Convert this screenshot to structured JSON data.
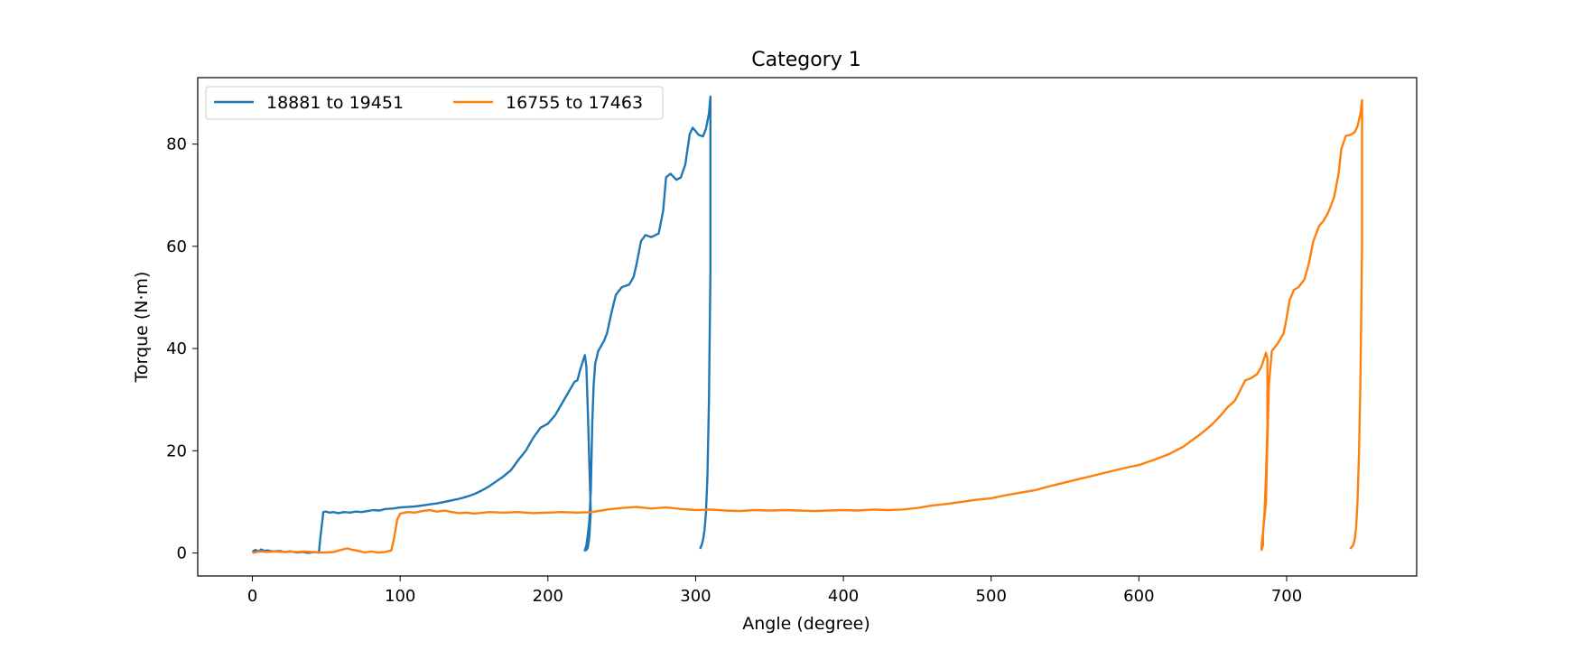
{
  "chart_data": {
    "type": "line",
    "title": "Category 1",
    "xlabel": "Angle (degree)",
    "ylabel": "Torque (N·m)",
    "xlim": [
      -37,
      788
    ],
    "ylim": [
      -4.5,
      93
    ],
    "xticks": [
      0,
      100,
      200,
      300,
      400,
      500,
      600,
      700
    ],
    "yticks": [
      0,
      20,
      40,
      60,
      80
    ],
    "grid": false,
    "legend": {
      "placement": "top-left",
      "ncol": 2
    },
    "series": [
      {
        "name": "18881 to 19451",
        "color": "#1f77b4",
        "points": [
          [
            0,
            0.2
          ],
          [
            2,
            0.6
          ],
          [
            4,
            0.3
          ],
          [
            6,
            0.7
          ],
          [
            8,
            0.4
          ],
          [
            10,
            0.5
          ],
          [
            14,
            0.3
          ],
          [
            18,
            0.4
          ],
          [
            22,
            0.2
          ],
          [
            26,
            0.3
          ],
          [
            30,
            0.1
          ],
          [
            34,
            0.2
          ],
          [
            38,
            0.0
          ],
          [
            42,
            0.2
          ],
          [
            45,
            0.1
          ],
          [
            46,
            3.0
          ],
          [
            47,
            5.5
          ],
          [
            48,
            8.0
          ],
          [
            50,
            8.1
          ],
          [
            52,
            7.9
          ],
          [
            55,
            8.0
          ],
          [
            58,
            7.8
          ],
          [
            62,
            8.0
          ],
          [
            66,
            7.9
          ],
          [
            70,
            8.1
          ],
          [
            74,
            8.0
          ],
          [
            78,
            8.2
          ],
          [
            82,
            8.4
          ],
          [
            86,
            8.3
          ],
          [
            90,
            8.6
          ],
          [
            95,
            8.7
          ],
          [
            100,
            8.9
          ],
          [
            105,
            9.0
          ],
          [
            110,
            9.1
          ],
          [
            115,
            9.3
          ],
          [
            120,
            9.5
          ],
          [
            125,
            9.7
          ],
          [
            130,
            10.0
          ],
          [
            135,
            10.3
          ],
          [
            140,
            10.6
          ],
          [
            145,
            11.0
          ],
          [
            150,
            11.5
          ],
          [
            155,
            12.2
          ],
          [
            160,
            13.0
          ],
          [
            165,
            14.0
          ],
          [
            170,
            15.0
          ],
          [
            175,
            16.2
          ],
          [
            180,
            18.2
          ],
          [
            185,
            20.0
          ],
          [
            190,
            22.5
          ],
          [
            195,
            24.5
          ],
          [
            200,
            25.3
          ],
          [
            205,
            27.0
          ],
          [
            210,
            29.5
          ],
          [
            215,
            32.0
          ],
          [
            218,
            33.5
          ],
          [
            220,
            33.8
          ],
          [
            222,
            36.0
          ],
          [
            225,
            38.7
          ],
          [
            226,
            36.5
          ],
          [
            227,
            28.0
          ],
          [
            228,
            18.0
          ],
          [
            229,
            8.0
          ],
          [
            228,
            3.0
          ],
          [
            227,
            1.0
          ],
          [
            226,
            0.6
          ],
          [
            225,
            0.5
          ],
          [
            226,
            1.5
          ],
          [
            227,
            3.5
          ],
          [
            228,
            6.0
          ],
          [
            229,
            12.0
          ],
          [
            230,
            25.0
          ],
          [
            231,
            33.0
          ],
          [
            232,
            37.0
          ],
          [
            234,
            39.5
          ],
          [
            238,
            41.5
          ],
          [
            240,
            43.0
          ],
          [
            243,
            47.0
          ],
          [
            246,
            50.5
          ],
          [
            250,
            52.0
          ],
          [
            255,
            52.5
          ],
          [
            258,
            54.0
          ],
          [
            260,
            56.5
          ],
          [
            263,
            61.0
          ],
          [
            266,
            62.2
          ],
          [
            270,
            61.8
          ],
          [
            275,
            62.5
          ],
          [
            278,
            67.0
          ],
          [
            280,
            73.5
          ],
          [
            283,
            74.2
          ],
          [
            287,
            73.0
          ],
          [
            290,
            73.5
          ],
          [
            293,
            76.0
          ],
          [
            296,
            82.0
          ],
          [
            298,
            83.2
          ],
          [
            300,
            82.5
          ],
          [
            302,
            81.8
          ],
          [
            305,
            81.5
          ],
          [
            307,
            83.0
          ],
          [
            309,
            86.0
          ],
          [
            310,
            89.3
          ],
          [
            310,
            55.0
          ],
          [
            309,
            30.0
          ],
          [
            308,
            15.0
          ],
          [
            307,
            8.0
          ],
          [
            306,
            4.5
          ],
          [
            305,
            2.5
          ],
          [
            304,
            1.5
          ],
          [
            303,
            0.8
          ]
        ]
      },
      {
        "name": "16755 to 17463",
        "color": "#ff7f0e",
        "points": [
          [
            0,
            0.0
          ],
          [
            5,
            0.3
          ],
          [
            10,
            0.2
          ],
          [
            15,
            0.3
          ],
          [
            20,
            0.2
          ],
          [
            25,
            0.3
          ],
          [
            30,
            0.2
          ],
          [
            35,
            0.3
          ],
          [
            40,
            0.2
          ],
          [
            45,
            0.1
          ],
          [
            50,
            0.1
          ],
          [
            55,
            0.2
          ],
          [
            60,
            0.6
          ],
          [
            64,
            0.9
          ],
          [
            68,
            0.6
          ],
          [
            72,
            0.4
          ],
          [
            76,
            0.1
          ],
          [
            80,
            0.3
          ],
          [
            85,
            0.1
          ],
          [
            90,
            0.2
          ],
          [
            94,
            0.5
          ],
          [
            96,
            3.0
          ],
          [
            98,
            6.5
          ],
          [
            100,
            7.7
          ],
          [
            105,
            8.0
          ],
          [
            110,
            7.9
          ],
          [
            115,
            8.2
          ],
          [
            120,
            8.4
          ],
          [
            125,
            8.1
          ],
          [
            130,
            8.3
          ],
          [
            135,
            8.0
          ],
          [
            140,
            7.8
          ],
          [
            145,
            7.9
          ],
          [
            150,
            7.7
          ],
          [
            160,
            8.0
          ],
          [
            170,
            7.9
          ],
          [
            180,
            8.0
          ],
          [
            190,
            7.8
          ],
          [
            200,
            7.9
          ],
          [
            210,
            8.0
          ],
          [
            220,
            7.9
          ],
          [
            230,
            8.0
          ],
          [
            240,
            8.5
          ],
          [
            250,
            8.8
          ],
          [
            260,
            9.0
          ],
          [
            270,
            8.7
          ],
          [
            280,
            8.9
          ],
          [
            290,
            8.6
          ],
          [
            300,
            8.4
          ],
          [
            310,
            8.5
          ],
          [
            320,
            8.3
          ],
          [
            330,
            8.2
          ],
          [
            340,
            8.4
          ],
          [
            350,
            8.3
          ],
          [
            360,
            8.4
          ],
          [
            370,
            8.3
          ],
          [
            380,
            8.2
          ],
          [
            390,
            8.3
          ],
          [
            400,
            8.4
          ],
          [
            410,
            8.3
          ],
          [
            420,
            8.5
          ],
          [
            430,
            8.4
          ],
          [
            440,
            8.5
          ],
          [
            450,
            8.8
          ],
          [
            460,
            9.3
          ],
          [
            470,
            9.6
          ],
          [
            480,
            10.0
          ],
          [
            490,
            10.4
          ],
          [
            500,
            10.7
          ],
          [
            510,
            11.3
          ],
          [
            520,
            11.8
          ],
          [
            530,
            12.3
          ],
          [
            540,
            13.1
          ],
          [
            550,
            13.8
          ],
          [
            560,
            14.5
          ],
          [
            570,
            15.2
          ],
          [
            580,
            15.9
          ],
          [
            590,
            16.6
          ],
          [
            600,
            17.2
          ],
          [
            610,
            18.2
          ],
          [
            620,
            19.3
          ],
          [
            630,
            20.8
          ],
          [
            640,
            22.9
          ],
          [
            645,
            24.0
          ],
          [
            650,
            25.3
          ],
          [
            655,
            26.8
          ],
          [
            660,
            28.5
          ],
          [
            665,
            29.8
          ],
          [
            668,
            31.5
          ],
          [
            672,
            33.8
          ],
          [
            676,
            34.2
          ],
          [
            680,
            35.0
          ],
          [
            683,
            36.5
          ],
          [
            686,
            39.2
          ],
          [
            687,
            38.0
          ],
          [
            687,
            25.0
          ],
          [
            686,
            15.0
          ],
          [
            685,
            8.0
          ],
          [
            684,
            4.0
          ],
          [
            684,
            1.5
          ],
          [
            683,
            0.6
          ],
          [
            683,
            1.5
          ],
          [
            684,
            4.0
          ],
          [
            686,
            10.0
          ],
          [
            687,
            22.0
          ],
          [
            688,
            33.0
          ],
          [
            690,
            39.5
          ],
          [
            694,
            41.0
          ],
          [
            698,
            43.0
          ],
          [
            700,
            46.0
          ],
          [
            702,
            49.5
          ],
          [
            705,
            51.5
          ],
          [
            708,
            52.0
          ],
          [
            712,
            53.5
          ],
          [
            715,
            56.5
          ],
          [
            718,
            61.0
          ],
          [
            722,
            64.0
          ],
          [
            725,
            65.0
          ],
          [
            728,
            66.5
          ],
          [
            732,
            69.5
          ],
          [
            735,
            74.0
          ],
          [
            737,
            79.0
          ],
          [
            740,
            81.6
          ],
          [
            743,
            81.8
          ],
          [
            746,
            82.3
          ],
          [
            748,
            83.5
          ],
          [
            750,
            86.0
          ],
          [
            751,
            88.6
          ],
          [
            751,
            60.0
          ],
          [
            750,
            35.0
          ],
          [
            749,
            20.0
          ],
          [
            748,
            10.0
          ],
          [
            747,
            5.0
          ],
          [
            746,
            2.5
          ],
          [
            745,
            1.5
          ],
          [
            743,
            0.8
          ]
        ]
      }
    ]
  }
}
